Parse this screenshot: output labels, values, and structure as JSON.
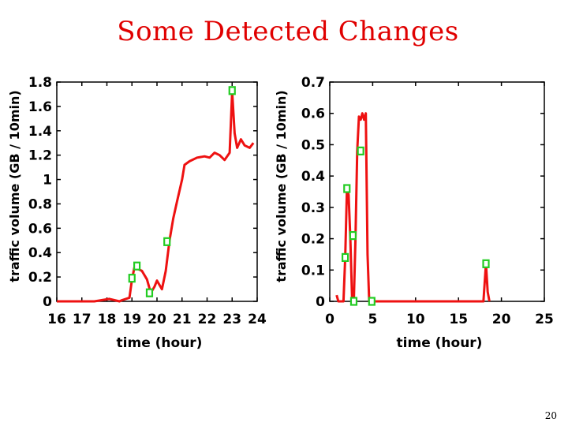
{
  "title": "Some Detected Changes",
  "page_number": "20",
  "colors": {
    "title": "#e00000",
    "line": "#ee1111",
    "marker": "#22cc22"
  },
  "chart_data": [
    {
      "type": "line",
      "xlabel": "time (hour)",
      "ylabel": "traffic volume (GB / 10min)",
      "xlim": [
        16,
        24
      ],
      "ylim": [
        0,
        1.8
      ],
      "xticks": [
        "16",
        "17",
        "18",
        "19",
        "20",
        "21",
        "22",
        "23",
        "24"
      ],
      "yticks": [
        "0",
        "0.2",
        "0.4",
        "0.6",
        "0.8",
        "1",
        "1.2",
        "1.4",
        "1.6",
        "1.8"
      ],
      "grid": false,
      "series": [
        {
          "x": [
            16,
            17.5,
            18.1,
            18.5,
            18.6,
            18.9,
            19.0,
            19.1,
            19.2,
            19.4,
            19.6,
            19.75,
            19.9,
            20.0,
            20.2,
            20.35,
            20.5,
            20.65,
            20.8,
            21.0,
            21.1,
            21.3,
            21.6,
            21.9,
            22.1,
            22.3,
            22.5,
            22.7,
            22.9,
            23.0,
            23.1,
            23.2,
            23.35,
            23.5,
            23.7,
            23.85
          ],
          "y": [
            0,
            0,
            0.02,
            0,
            0.01,
            0.03,
            0.18,
            0.28,
            0.27,
            0.25,
            0.18,
            0.07,
            0.12,
            0.17,
            0.1,
            0.25,
            0.5,
            0.68,
            0.82,
            1.0,
            1.12,
            1.15,
            1.18,
            1.19,
            1.18,
            1.22,
            1.2,
            1.16,
            1.22,
            1.72,
            1.38,
            1.26,
            1.33,
            1.28,
            1.26,
            1.3
          ]
        }
      ],
      "markers": [
        {
          "x": 19.0,
          "y": 0.19
        },
        {
          "x": 19.2,
          "y": 0.29
        },
        {
          "x": 19.7,
          "y": 0.07
        },
        {
          "x": 20.4,
          "y": 0.49
        },
        {
          "x": 23.0,
          "y": 1.73
        }
      ]
    },
    {
      "type": "line",
      "xlabel": "time (hour)",
      "ylabel": "traffic volume (GB / 10min)",
      "xlim": [
        0,
        25
      ],
      "ylim": [
        0,
        0.7
      ],
      "xticks": [
        "0",
        "5",
        "10",
        "15",
        "20",
        "25"
      ],
      "yticks": [
        "0",
        "0.1",
        "0.2",
        "0.3",
        "0.4",
        "0.5",
        "0.6",
        "0.7"
      ],
      "grid": false,
      "series": [
        {
          "x": [
            0.8,
            1.0,
            1.2,
            1.6,
            1.8,
            2.0,
            2.2,
            2.4,
            2.6,
            2.8,
            3.0,
            3.2,
            3.4,
            3.6,
            3.8,
            4.0,
            4.2,
            4.4,
            4.6,
            4.8,
            5.0,
            17.9,
            18.2,
            18.4,
            18.6
          ],
          "y": [
            0.02,
            0,
            0,
            0,
            0.14,
            0.36,
            0.34,
            0.2,
            0.01,
            0,
            0.2,
            0.48,
            0.59,
            0.58,
            0.6,
            0.58,
            0.6,
            0.15,
            0,
            0,
            0,
            0,
            0.12,
            0.03,
            0
          ]
        }
      ],
      "markers": [
        {
          "x": 1.8,
          "y": 0.14
        },
        {
          "x": 2.0,
          "y": 0.36
        },
        {
          "x": 2.7,
          "y": 0.21
        },
        {
          "x": 2.8,
          "y": 0.0
        },
        {
          "x": 3.6,
          "y": 0.48
        },
        {
          "x": 4.9,
          "y": 0.0
        },
        {
          "x": 18.2,
          "y": 0.12
        }
      ]
    }
  ]
}
